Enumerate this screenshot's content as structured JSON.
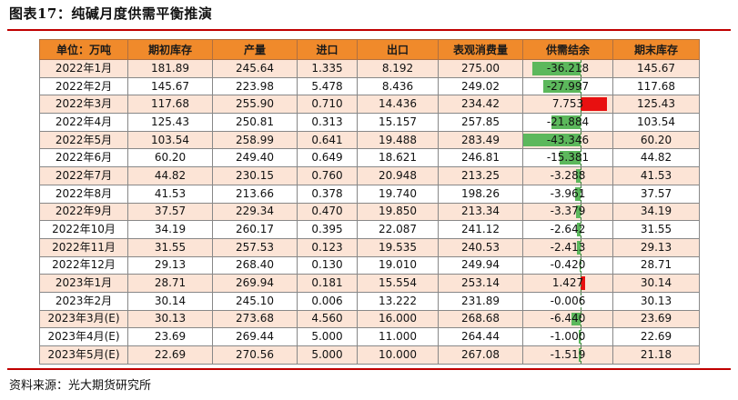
{
  "title": "图表17：纯碱月度供需平衡推演",
  "source": "资料来源：光大期货研究所",
  "colors": {
    "header_bg": "#f08a2b",
    "odd_row": "#fce4d6",
    "rule": "#c00000",
    "bar_negative": "#5cb85c",
    "bar_positive": "#e81010"
  },
  "table": {
    "headers": [
      "单位：万吨",
      "期初库存",
      "产量",
      "进口",
      "出口",
      "表观消费量",
      "供需结余",
      "期末库存"
    ],
    "rows": [
      [
        "2022年1月",
        "181.89",
        "245.64",
        "1.335",
        "8.192",
        "275.00",
        "-36.218",
        "145.67"
      ],
      [
        "2022年2月",
        "145.67",
        "223.98",
        "5.478",
        "8.436",
        "249.02",
        "-27.997",
        "117.68"
      ],
      [
        "2022年3月",
        "117.68",
        "255.90",
        "0.710",
        "14.436",
        "234.42",
        "7.753",
        "125.43"
      ],
      [
        "2022年4月",
        "125.43",
        "250.81",
        "0.313",
        "15.157",
        "257.85",
        "-21.884",
        "103.54"
      ],
      [
        "2022年5月",
        "103.54",
        "258.99",
        "0.641",
        "19.488",
        "283.49",
        "-43.346",
        "60.20"
      ],
      [
        "2022年6月",
        "60.20",
        "249.40",
        "0.649",
        "18.621",
        "246.81",
        "-15.381",
        "44.82"
      ],
      [
        "2022年7月",
        "44.82",
        "230.15",
        "0.760",
        "20.948",
        "213.25",
        "-3.288",
        "41.53"
      ],
      [
        "2022年8月",
        "41.53",
        "213.66",
        "0.378",
        "19.740",
        "198.26",
        "-3.961",
        "37.57"
      ],
      [
        "2022年9月",
        "37.57",
        "229.34",
        "0.470",
        "19.850",
        "213.34",
        "-3.379",
        "34.19"
      ],
      [
        "2022年10月",
        "34.19",
        "260.17",
        "0.395",
        "22.087",
        "241.12",
        "-2.642",
        "31.55"
      ],
      [
        "2022年11月",
        "31.55",
        "257.53",
        "0.123",
        "19.535",
        "240.53",
        "-2.413",
        "29.13"
      ],
      [
        "2022年12月",
        "29.13",
        "268.40",
        "0.130",
        "19.010",
        "249.94",
        "-0.420",
        "28.71"
      ],
      [
        "2023年1月",
        "28.71",
        "269.94",
        "0.181",
        "15.554",
        "253.14",
        "1.427",
        "30.14"
      ],
      [
        "2023年2月",
        "30.14",
        "245.10",
        "0.006",
        "13.222",
        "231.89",
        "-0.006",
        "30.13"
      ],
      [
        "2023年3月(E)",
        "30.13",
        "273.68",
        "4.560",
        "16.000",
        "268.68",
        "-6.440",
        "23.69"
      ],
      [
        "2023年4月(E)",
        "23.69",
        "269.44",
        "5.000",
        "11.000",
        "264.44",
        "-1.000",
        "22.69"
      ],
      [
        "2023年5月(E)",
        "22.69",
        "270.56",
        "5.000",
        "10.000",
        "267.08",
        "-1.519",
        "21.18"
      ]
    ],
    "balance_values": [
      -36.218,
      -27.997,
      7.753,
      -21.884,
      -43.346,
      -15.381,
      -3.288,
      -3.961,
      -3.379,
      -2.642,
      -2.413,
      -0.42,
      1.427,
      -0.006,
      -6.44,
      -1.0,
      -1.519
    ]
  }
}
